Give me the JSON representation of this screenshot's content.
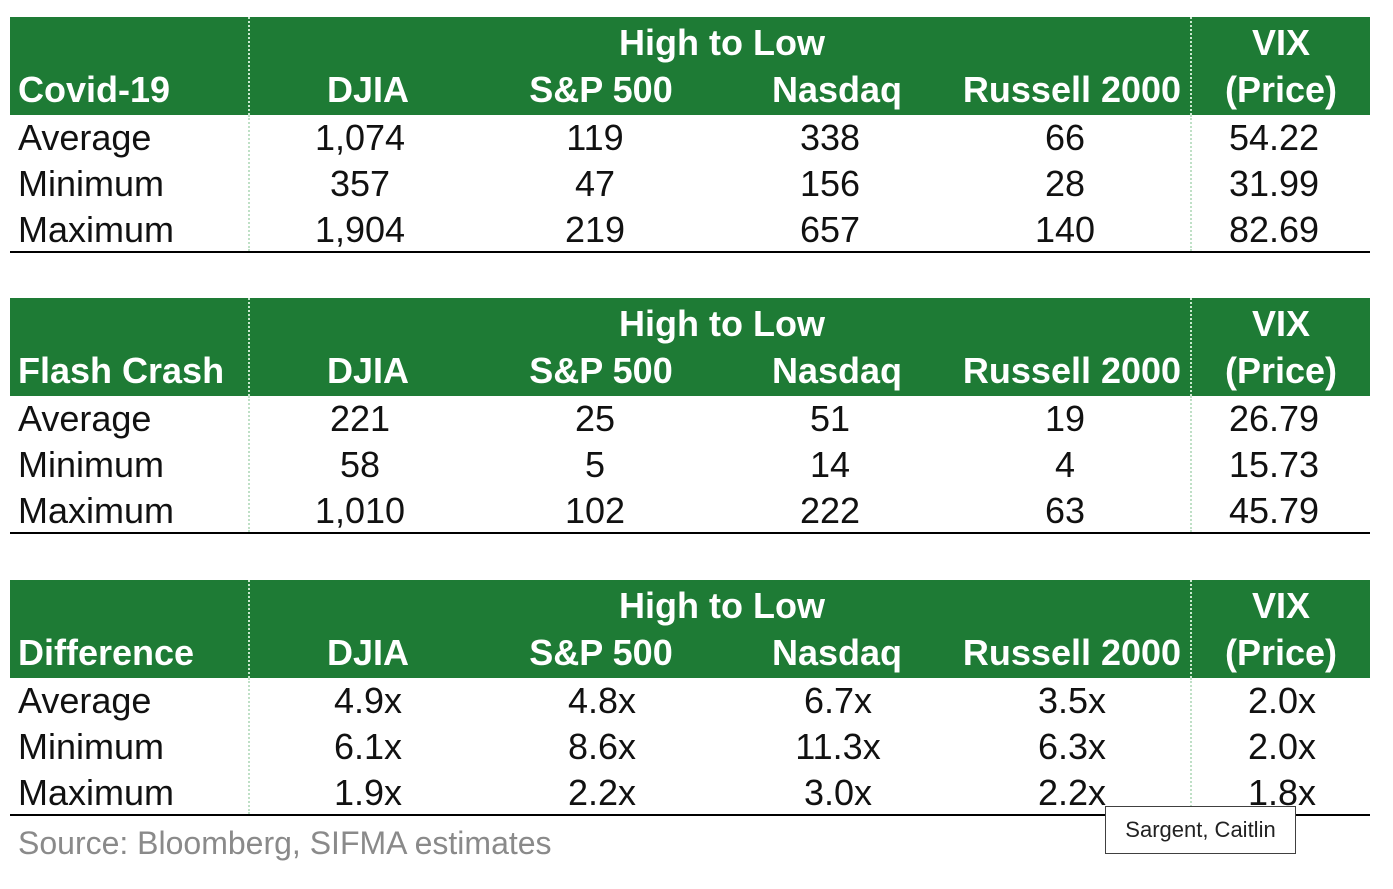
{
  "header": {
    "group_label": "High to Low",
    "vix_line1": "VIX",
    "vix_line2": "(Price)",
    "columns": [
      "DJIA",
      "S&P 500",
      "Nasdaq",
      "Russell 2000"
    ]
  },
  "tables": [
    {
      "title": "Covid-19",
      "rows": [
        {
          "label": "Average",
          "values": [
            "1,074",
            "119",
            "338",
            "66",
            "54.22"
          ]
        },
        {
          "label": "Minimum",
          "values": [
            "357",
            "47",
            "156",
            "28",
            "31.99"
          ]
        },
        {
          "label": "Maximum",
          "values": [
            "1,904",
            "219",
            "657",
            "140",
            "82.69"
          ]
        }
      ]
    },
    {
      "title": "Flash Crash",
      "rows": [
        {
          "label": "Average",
          "values": [
            "221",
            "25",
            "51",
            "19",
            "26.79"
          ]
        },
        {
          "label": "Minimum",
          "values": [
            "58",
            "5",
            "14",
            "4",
            "15.73"
          ]
        },
        {
          "label": "Maximum",
          "values": [
            "1,010",
            "102",
            "222",
            "63",
            "45.79"
          ]
        }
      ]
    },
    {
      "title": "Difference",
      "rows": [
        {
          "label": "Average",
          "values": [
            "4.9x",
            "4.8x",
            "6.7x",
            "3.5x",
            "2.0x"
          ]
        },
        {
          "label": "Minimum",
          "values": [
            "6.1x",
            "8.6x",
            "11.3x",
            "6.3x",
            "2.0x"
          ]
        },
        {
          "label": "Maximum",
          "values": [
            "1.9x",
            "2.2x",
            "3.0x",
            "2.2x",
            "1.8x"
          ]
        }
      ]
    }
  ],
  "source": "Source: Bloomberg, SIFMA estimates",
  "comment_author": "Sargent, Caitlin",
  "colors": {
    "header_bg": "#1e7b35",
    "header_text": "#ffffff",
    "source_text": "#8a8a8a"
  }
}
